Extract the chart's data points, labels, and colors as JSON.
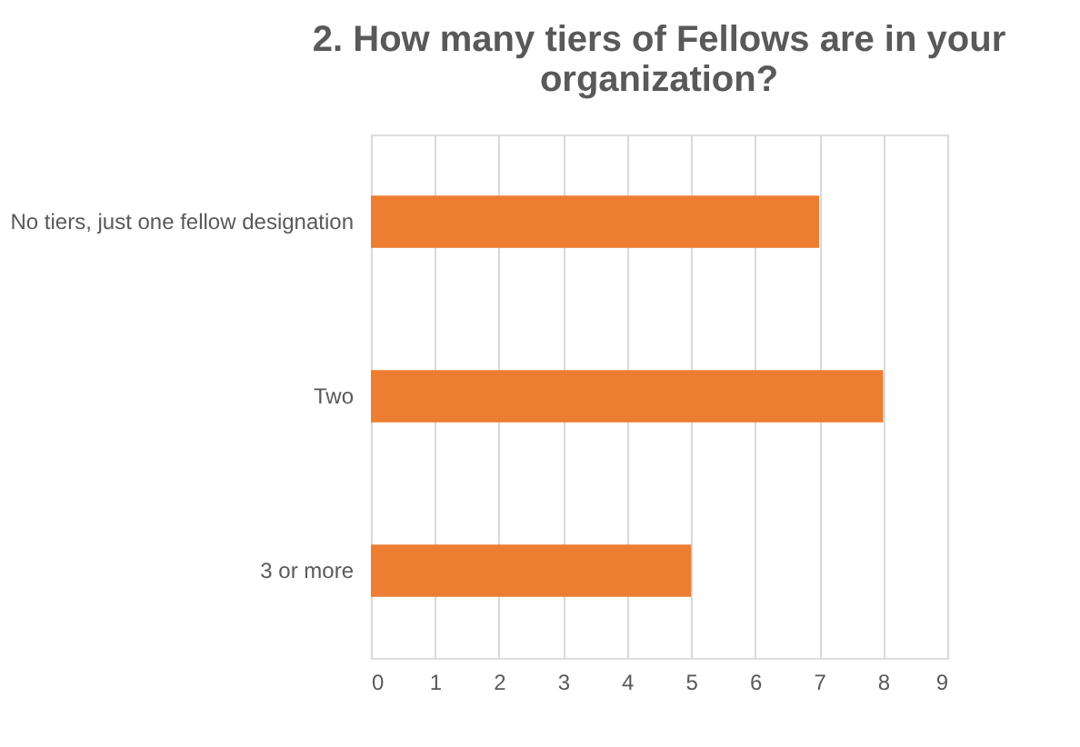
{
  "chart_data": {
    "type": "bar",
    "orientation": "horizontal",
    "title": "2. How many tiers of Fellows are in your organization?",
    "categories": [
      "No tiers, just one fellow designation",
      "Two",
      "3 or more"
    ],
    "values": [
      7,
      8,
      5
    ],
    "color": "#ed7d31",
    "xlim": [
      0,
      9
    ],
    "xticks": [
      0,
      1,
      2,
      3,
      4,
      5,
      6,
      7,
      8,
      9
    ],
    "grid": "x"
  }
}
